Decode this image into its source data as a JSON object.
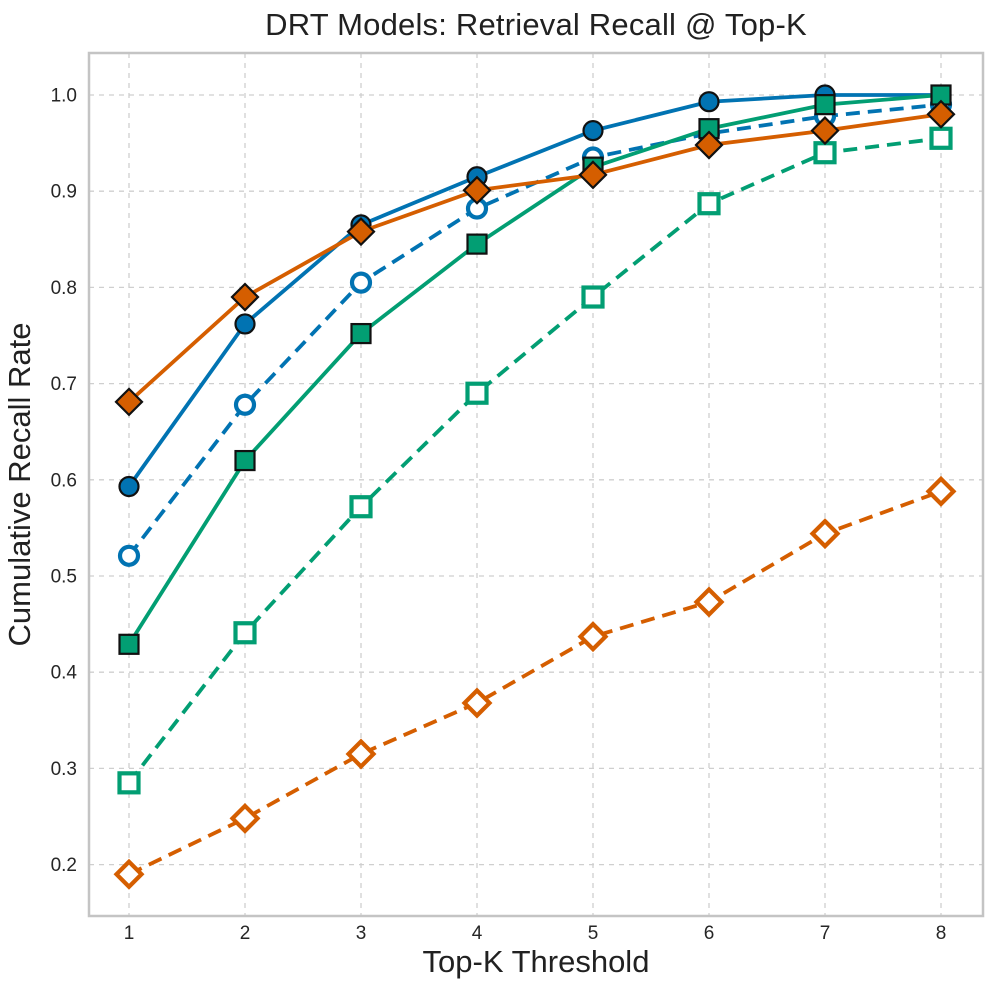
{
  "chart_data": {
    "type": "line",
    "title": "DRT Models: Retrieval Recall @ Top-K",
    "xlabel": "Top-K Threshold",
    "ylabel": "Cumulative Recall Rate",
    "x": [
      1,
      2,
      3,
      4,
      5,
      6,
      7,
      8
    ],
    "x_tick_labels": [
      "1",
      "2",
      "3",
      "4",
      "5",
      "6",
      "7",
      "8"
    ],
    "y_tick_values": [
      0.2,
      0.3,
      0.4,
      0.5,
      0.6,
      0.7,
      0.8,
      0.9,
      1.0
    ],
    "y_tick_labels": [
      "0.2",
      "0.3",
      "0.4",
      "0.5",
      "0.6",
      "0.7",
      "0.8",
      "0.9",
      "1.0"
    ],
    "xlim": [
      0.66,
      8.36
    ],
    "ylim": [
      0.147,
      1.044
    ],
    "grid": {
      "show": true,
      "style": "dashed",
      "color": "#cfcfcf"
    },
    "frame_color": "#c4c4c4",
    "text_color": "#262626",
    "legend_position": "none",
    "series": [
      {
        "name": "blue-solid-filled-circle",
        "color": "#0173b2",
        "line_style": "solid",
        "marker": "circle",
        "marker_fill": "filled",
        "values": [
          0.593,
          0.762,
          0.865,
          0.915,
          0.963,
          0.993,
          1.0,
          1.0
        ]
      },
      {
        "name": "blue-dashed-open-circle",
        "color": "#0173b2",
        "line_style": "dashed",
        "marker": "circle",
        "marker_fill": "open",
        "values": [
          0.521,
          0.678,
          0.805,
          0.882,
          0.935,
          0.96,
          0.978,
          0.99
        ]
      },
      {
        "name": "green-solid-filled-square",
        "color": "#029e73",
        "line_style": "solid",
        "marker": "square",
        "marker_fill": "filled",
        "values": [
          0.429,
          0.62,
          0.752,
          0.845,
          0.925,
          0.965,
          0.99,
          1.0
        ]
      },
      {
        "name": "green-dashed-open-square",
        "color": "#029e73",
        "line_style": "dashed",
        "marker": "square",
        "marker_fill": "open",
        "values": [
          0.285,
          0.441,
          0.572,
          0.69,
          0.79,
          0.887,
          0.94,
          0.955
        ]
      },
      {
        "name": "orange-solid-filled-diamond",
        "color": "#d55e00",
        "line_style": "solid",
        "marker": "diamond",
        "marker_fill": "filled",
        "values": [
          0.681,
          0.79,
          0.858,
          0.901,
          0.917,
          0.948,
          0.963,
          0.98
        ]
      },
      {
        "name": "orange-dashed-open-diamond",
        "color": "#d55e00",
        "line_style": "dashed",
        "marker": "diamond",
        "marker_fill": "open",
        "values": [
          0.19,
          0.248,
          0.315,
          0.368,
          0.437,
          0.473,
          0.544,
          0.588
        ]
      }
    ]
  }
}
